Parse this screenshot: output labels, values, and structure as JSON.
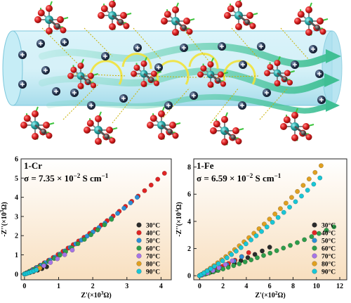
{
  "figure": {
    "colors": {
      "tube": "#9fdcec",
      "metal": "#28a7a7",
      "oxygen": "#d91e1e",
      "carbon": "#555555",
      "hydrogen": "#3ec43e",
      "proton": "#2a3a55",
      "arrow_green": "#6fd6b8",
      "arrow_yellow": "#f2e33a"
    }
  },
  "panels": [
    {
      "label": "1-Cr",
      "sigma": "σ = 7.35 × 10",
      "sigma_exp": "−2",
      "sigma_unit": " S cm",
      "sigma_unit_exp": "−1",
      "ylabel": "-Z''(×10",
      "ylabel_exp": "3",
      "ylabel_unit": "Ω)",
      "xlabel": "Z'(×10",
      "xlabel_exp": "3",
      "xlabel_unit": "Ω)"
    },
    {
      "label": "1-Fe",
      "sigma": "σ = 6.59 × 10",
      "sigma_exp": "−2",
      "sigma_unit": " S cm",
      "sigma_unit_exp": "−1",
      "ylabel": "-Z''(×10",
      "ylabel_exp": "3",
      "ylabel_unit": "Ω)",
      "xlabel": "Z'(×10",
      "xlabel_exp": "2",
      "xlabel_unit": "Ω)"
    }
  ],
  "chart_data": [
    {
      "type": "scatter",
      "title": "1-Cr",
      "xlabel": "Z'(×10³Ω)",
      "ylabel": "-Z''(×10³Ω)",
      "xlim": [
        -0.1,
        4.3
      ],
      "ylim": [
        -0.3,
        6.0
      ],
      "xticks": [
        0,
        1,
        2,
        3,
        4
      ],
      "yticks": [
        0,
        1,
        2,
        3,
        4,
        5,
        6
      ],
      "legend_position": "right",
      "series": [
        {
          "name": "30°C",
          "color": "#2b2b2b",
          "end": [
            0.65,
            0.38
          ]
        },
        {
          "name": "40°C",
          "color": "#e02424",
          "end": [
            4.1,
            5.25
          ]
        },
        {
          "name": "50°C",
          "color": "#2c8fd6",
          "end": [
            3.3,
            4.0
          ]
        },
        {
          "name": "60°C",
          "color": "#2e9d4a",
          "end": [
            2.55,
            2.85
          ]
        },
        {
          "name": "70°C",
          "color": "#a674e6",
          "end": [
            1.4,
            1.25
          ]
        },
        {
          "name": "80°C",
          "color": "#e0a020",
          "end": [
            0.45,
            0.3
          ]
        },
        {
          "name": "90°C",
          "color": "#19c6d6",
          "end": [
            0.35,
            0.22
          ]
        }
      ]
    },
    {
      "type": "scatter",
      "title": "1-Fe",
      "xlabel": "Z'(×10²Ω)",
      "ylabel": "-Z''(×10³Ω)",
      "xlim": [
        -0.5,
        12.6
      ],
      "ylim": [
        -0.3,
        8.6
      ],
      "xticks": [
        0,
        2,
        4,
        6,
        8,
        10,
        12
      ],
      "yticks": [
        0,
        2,
        4,
        6,
        8
      ],
      "legend_position": "right",
      "series": [
        {
          "name": "30°C",
          "color": "#2b2b2b",
          "end": [
            6.0,
            2.1
          ]
        },
        {
          "name": "40°C",
          "color": "#e02424",
          "end": [
            4.2,
            1.7
          ]
        },
        {
          "name": "50°C",
          "color": "#2c8fd6",
          "end": [
            3.6,
            1.4
          ]
        },
        {
          "name": "60°C",
          "color": "#2e9d4a",
          "end": [
            11.5,
            3.6
          ]
        },
        {
          "name": "70°C",
          "color": "#a674e6",
          "end": [
            2.8,
            1.1
          ]
        },
        {
          "name": "80°C",
          "color": "#e0a020",
          "end": [
            10.4,
            8.1
          ]
        },
        {
          "name": "90°C",
          "color": "#19c6d6",
          "end": [
            10.3,
            7.2
          ]
        }
      ]
    }
  ]
}
